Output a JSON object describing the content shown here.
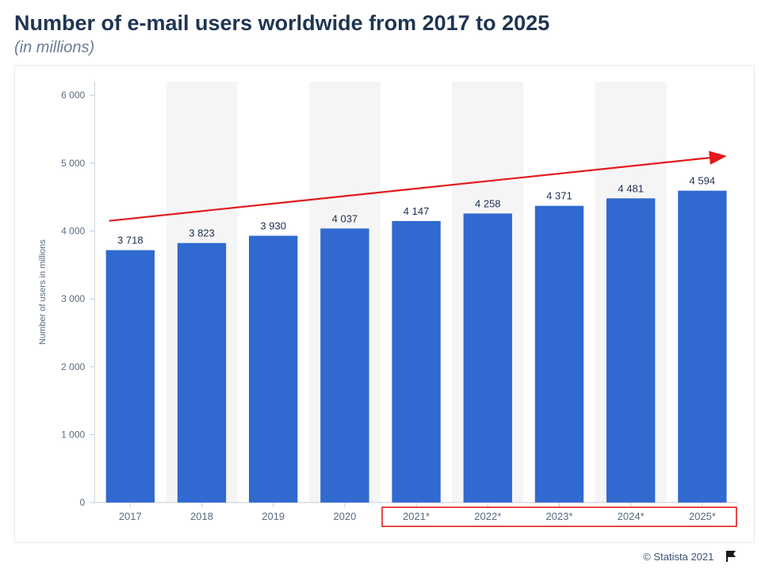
{
  "title": "Number of e-mail users worldwide from 2017 to 2025",
  "subtitle": "(in millions)",
  "footer": {
    "copyright": "© Statista 2021"
  },
  "chart": {
    "type": "bar",
    "y_axis_label": "Number of users in millions",
    "ylim": [
      0,
      6200
    ],
    "yticks": [
      0,
      1000,
      2000,
      3000,
      4000,
      5000,
      6000
    ],
    "ytick_labels": [
      "0",
      "1 000",
      "2 000",
      "3 000",
      "4 000",
      "5 000",
      "6 000"
    ],
    "categories": [
      "2017",
      "2018",
      "2019",
      "2020",
      "2021*",
      "2022*",
      "2023*",
      "2024*",
      "2025*"
    ],
    "values": [
      3718,
      3823,
      3930,
      4037,
      4147,
      4258,
      4371,
      4481,
      4594
    ],
    "value_labels": [
      "3 718",
      "3 823",
      "3 930",
      "4 037",
      "4 147",
      "4 258",
      "4 371",
      "4 481",
      "4 594"
    ],
    "bar_color": "#3069cf",
    "plot_background_bands_color": "#f5f5f5",
    "axis_line_color": "#c7ced6",
    "axis_text_color": "#5a6b80",
    "value_label_color": "#203050",
    "value_label_fontsize": 13,
    "category_label_fontsize": 13,
    "title_color": "#1f3553",
    "trend_arrow": {
      "color": "#e41a1c",
      "start_x_index": 0,
      "start_y": 4150,
      "end_x_index": 8,
      "end_y": 5100
    },
    "projection_highlight": {
      "border_color": "#e41a1c",
      "from_index": 4,
      "to_index": 8
    }
  }
}
